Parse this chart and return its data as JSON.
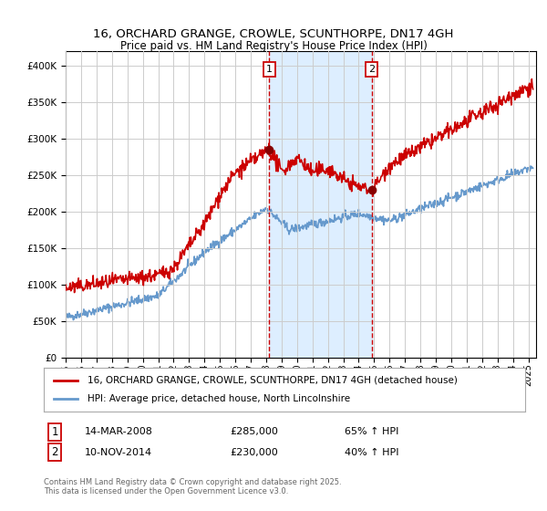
{
  "title": "16, ORCHARD GRANGE, CROWLE, SCUNTHORPE, DN17 4GH",
  "subtitle": "Price paid vs. HM Land Registry's House Price Index (HPI)",
  "legend_line1": "16, ORCHARD GRANGE, CROWLE, SCUNTHORPE, DN17 4GH (detached house)",
  "legend_line2": "HPI: Average price, detached house, North Lincolnshire",
  "annotation1_date": "14-MAR-2008",
  "annotation1_price": "£285,000",
  "annotation1_hpi": "65% ↑ HPI",
  "annotation2_date": "10-NOV-2014",
  "annotation2_price": "£230,000",
  "annotation2_hpi": "40% ↑ HPI",
  "copyright": "Contains HM Land Registry data © Crown copyright and database right 2025.\nThis data is licensed under the Open Government Licence v3.0.",
  "red_color": "#cc0000",
  "blue_color": "#6699cc",
  "bg_color": "#ffffff",
  "grid_color": "#cccccc",
  "shade_color": "#ddeeff",
  "vline_color": "#cc0000",
  "ylim": [
    0,
    420000
  ],
  "yticks": [
    0,
    50000,
    100000,
    150000,
    200000,
    250000,
    300000,
    350000,
    400000
  ],
  "xlim_start": 1995.0,
  "xlim_end": 2025.5,
  "vline1_x": 2008.2,
  "vline2_x": 2014.85,
  "marker1_x": 2008.2,
  "marker1_y": 285000,
  "marker2_x": 2014.85,
  "marker2_y": 230000
}
